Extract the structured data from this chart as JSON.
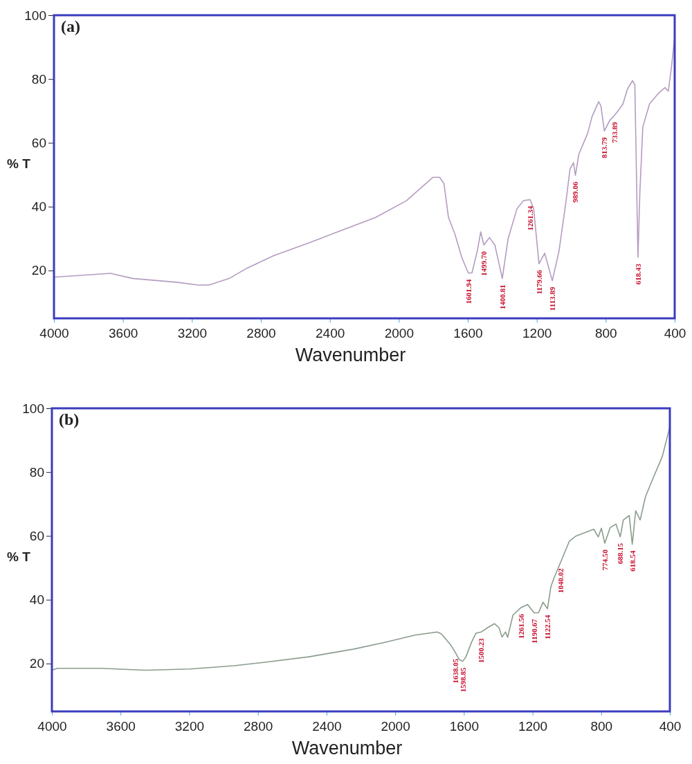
{
  "chart_data": [
    {
      "type": "line",
      "title": "(a)",
      "xlabel": "Wavenumber",
      "ylabel": "% T",
      "xlim": [
        4000,
        400
      ],
      "ylim": [
        5,
        100
      ],
      "xticks": [
        4000,
        3600,
        3200,
        2800,
        2400,
        2000,
        1600,
        1200,
        800,
        400
      ],
      "yticks": [
        20,
        40,
        60,
        80,
        100
      ],
      "grid": false,
      "marker": "none",
      "line_style": "solid",
      "series": [
        {
          "color": "#b49cc0",
          "x": [
            4000,
            3672,
            3544,
            3288,
            3160,
            3096,
            2980,
            2878,
            2724,
            2519,
            2365,
            2135,
            1955,
            1802,
            1763,
            1738,
            1712,
            1674,
            1635,
            1597,
            1576,
            1545,
            1525,
            1507,
            1474,
            1443,
            1400,
            1366,
            1315,
            1277,
            1238,
            1218,
            1187,
            1154,
            1110,
            1071,
            1033,
            1007,
            987,
            976,
            956,
            905,
            879,
            841,
            828,
            808,
            777,
            751,
            725,
            700,
            674,
            644,
            631,
            620,
            613,
            602,
            585,
            546,
            495,
            456,
            437,
            418,
            400
          ],
          "values": [
            17.9,
            19.1,
            17.5,
            16.3,
            15.4,
            15.5,
            17.6,
            20.8,
            24.7,
            28.7,
            31.9,
            36.6,
            41.9,
            49.2,
            49.2,
            47.2,
            36.6,
            31.3,
            24.1,
            19.2,
            19.2,
            26.1,
            32.1,
            28.0,
            30.3,
            28.0,
            17.5,
            30.0,
            39.3,
            41.9,
            42.2,
            39.3,
            22.1,
            25.4,
            16.8,
            26.1,
            40.6,
            51.8,
            53.8,
            49.8,
            56.4,
            63.0,
            68.3,
            72.9,
            71.6,
            63.7,
            67.0,
            68.5,
            70.3,
            72.2,
            76.9,
            79.5,
            78.2,
            44.5,
            24.1,
            44.5,
            65.0,
            72.2,
            75.5,
            77.3,
            76.2,
            84.1,
            93.4
          ]
        }
      ],
      "annotations": [
        {
          "text": "1601.94",
          "x": 1597,
          "y": 19.2
        },
        {
          "text": "1499.70",
          "x": 1507,
          "y": 28.0
        },
        {
          "text": "1400.81",
          "x": 1400,
          "y": 17.5
        },
        {
          "text": "1261.34",
          "x": 1238,
          "y": 42.2
        },
        {
          "text": "1179.66",
          "x": 1187,
          "y": 22.1
        },
        {
          "text": "1113.89",
          "x": 1110,
          "y": 16.8
        },
        {
          "text": "989.06",
          "x": 976,
          "y": 49.8
        },
        {
          "text": "813.79",
          "x": 808,
          "y": 63.7
        },
        {
          "text": "733.89",
          "x": 751,
          "y": 68.5
        },
        {
          "text": "618.43",
          "x": 613,
          "y": 24.1
        }
      ]
    },
    {
      "type": "line",
      "title": "(b)",
      "xlabel": "Wavenumber",
      "ylabel": "% T",
      "xlim": [
        4000,
        400
      ],
      "ylim": [
        5,
        100
      ],
      "xticks": [
        4000,
        3600,
        3200,
        2800,
        2400,
        2000,
        1600,
        1200,
        800,
        400
      ],
      "yticks": [
        20,
        40,
        60,
        80,
        100
      ],
      "grid": false,
      "marker": "none",
      "line_style": "solid",
      "series": [
        {
          "color": "#8a9c8c",
          "x": [
            4000,
            3969,
            3712,
            3455,
            3197,
            2940,
            2760,
            2503,
            2245,
            2065,
            1885,
            1756,
            1731,
            1679,
            1650,
            1628,
            1607,
            1589,
            1556,
            1530,
            1499,
            1460,
            1422,
            1396,
            1378,
            1357,
            1345,
            1314,
            1268,
            1229,
            1191,
            1165,
            1139,
            1113,
            1093,
            1075,
            1036,
            985,
            946,
            843,
            817,
            799,
            779,
            748,
            714,
            689,
            671,
            637,
            619,
            599,
            573,
            542,
            496,
            444,
            400
          ],
          "values": [
            17.9,
            18.5,
            18.5,
            17.9,
            18.3,
            19.3,
            20.4,
            22.1,
            24.5,
            26.6,
            28.9,
            29.9,
            29.3,
            26.0,
            23.5,
            21.3,
            20.7,
            22.0,
            26.6,
            29.5,
            29.9,
            31.3,
            32.5,
            31.3,
            28.3,
            29.9,
            28.2,
            35.2,
            37.5,
            38.5,
            35.9,
            35.9,
            39.2,
            37.2,
            44.1,
            46.8,
            51.8,
            58.4,
            60.0,
            62.1,
            59.7,
            62.4,
            57.7,
            62.6,
            63.7,
            59.7,
            65.0,
            66.4,
            57.4,
            67.9,
            65.0,
            72.3,
            78.3,
            84.9,
            94.2
          ]
        }
      ],
      "annotations": [
        {
          "text": "1638.05",
          "x": 1650,
          "y": 23.5
        },
        {
          "text": "1598.85",
          "x": 1607,
          "y": 20.7
        },
        {
          "text": "1500.23",
          "x": 1499,
          "y": 29.9
        },
        {
          "text": "1261.56",
          "x": 1268,
          "y": 37.5
        },
        {
          "text": "1190.67",
          "x": 1191,
          "y": 35.9
        },
        {
          "text": "1122.54",
          "x": 1113,
          "y": 37.2
        },
        {
          "text": "1040.02",
          "x": 1036,
          "y": 51.8
        },
        {
          "text": "774.50",
          "x": 779,
          "y": 57.7
        },
        {
          "text": "688.15",
          "x": 689,
          "y": 59.7
        },
        {
          "text": "618.54",
          "x": 619,
          "y": 57.4
        }
      ]
    }
  ]
}
